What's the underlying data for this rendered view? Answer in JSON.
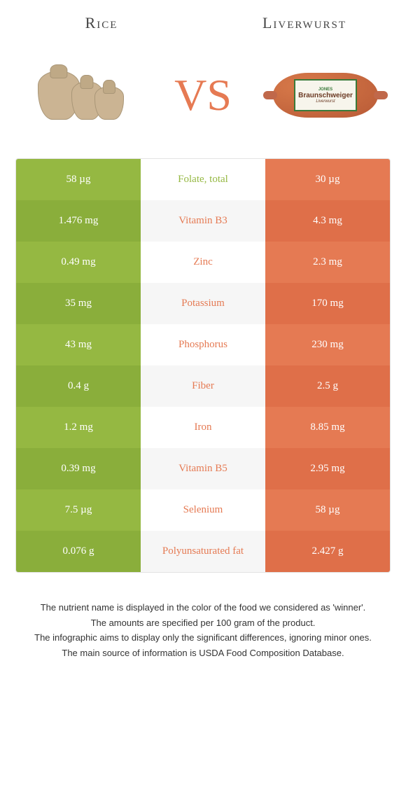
{
  "header": {
    "left_title": "Rice",
    "right_title": "Liverwurst",
    "vs_text": "VS"
  },
  "colors": {
    "left": "#95b842",
    "left_alt": "#8aae3b",
    "right": "#e57a53",
    "right_alt": "#df6f49",
    "mid_alt_bg": "#f6f6f6",
    "mid_bg": "#ffffff",
    "left_text": "#95b842",
    "right_text": "#e57a53"
  },
  "sausage_label": {
    "brand": "JONES",
    "main": "Braunschweiger",
    "sub": "Liverwurst"
  },
  "rows": [
    {
      "left": "58 µg",
      "mid": "Folate, total",
      "right": "30 µg",
      "winner": "left"
    },
    {
      "left": "1.476 mg",
      "mid": "Vitamin B3",
      "right": "4.3 mg",
      "winner": "right"
    },
    {
      "left": "0.49 mg",
      "mid": "Zinc",
      "right": "2.3 mg",
      "winner": "right"
    },
    {
      "left": "35 mg",
      "mid": "Potassium",
      "right": "170 mg",
      "winner": "right"
    },
    {
      "left": "43 mg",
      "mid": "Phosphorus",
      "right": "230 mg",
      "winner": "right"
    },
    {
      "left": "0.4 g",
      "mid": "Fiber",
      "right": "2.5 g",
      "winner": "right"
    },
    {
      "left": "1.2 mg",
      "mid": "Iron",
      "right": "8.85 mg",
      "winner": "right"
    },
    {
      "left": "0.39 mg",
      "mid": "Vitamin B5",
      "right": "2.95 mg",
      "winner": "right"
    },
    {
      "left": "7.5 µg",
      "mid": "Selenium",
      "right": "58 µg",
      "winner": "right"
    },
    {
      "left": "0.076 g",
      "mid": "Polyunsaturated fat",
      "right": "2.427 g",
      "winner": "right"
    }
  ],
  "footnotes": [
    "The nutrient name is displayed in the color of the food we considered as 'winner'.",
    "The amounts are specified per 100 gram of the product.",
    "The infographic aims to display only the significant differences, ignoring minor ones.",
    "The main source of information is USDA Food Composition Database."
  ]
}
